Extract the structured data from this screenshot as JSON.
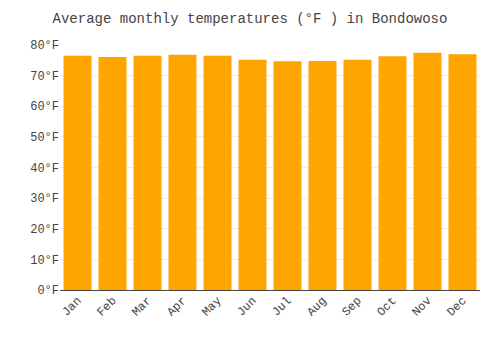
{
  "chart_data": {
    "type": "bar",
    "title": "Average monthly temperatures (°F ) in Bondowoso",
    "categories": [
      "Jan",
      "Feb",
      "Mar",
      "Apr",
      "May",
      "Jun",
      "Jul",
      "Aug",
      "Sep",
      "Oct",
      "Nov",
      "Dec"
    ],
    "values": [
      76.5,
      76.1,
      76.5,
      76.8,
      76.5,
      75.2,
      74.7,
      74.8,
      75.2,
      76.3,
      77.5,
      77.0
    ],
    "color": "#FFA500",
    "ylim": [
      0,
      80
    ],
    "yticks": [
      {
        "value": 0,
        "label": "0°F"
      },
      {
        "value": 10,
        "label": "10°F"
      },
      {
        "value": 20,
        "label": "20°F"
      },
      {
        "value": 30,
        "label": "30°F"
      },
      {
        "value": 40,
        "label": "40°F"
      },
      {
        "value": 50,
        "label": "50°F"
      },
      {
        "value": 60,
        "label": "60°F"
      },
      {
        "value": 70,
        "label": "70°F"
      },
      {
        "value": 80,
        "label": "80°F"
      }
    ],
    "grid": true
  }
}
